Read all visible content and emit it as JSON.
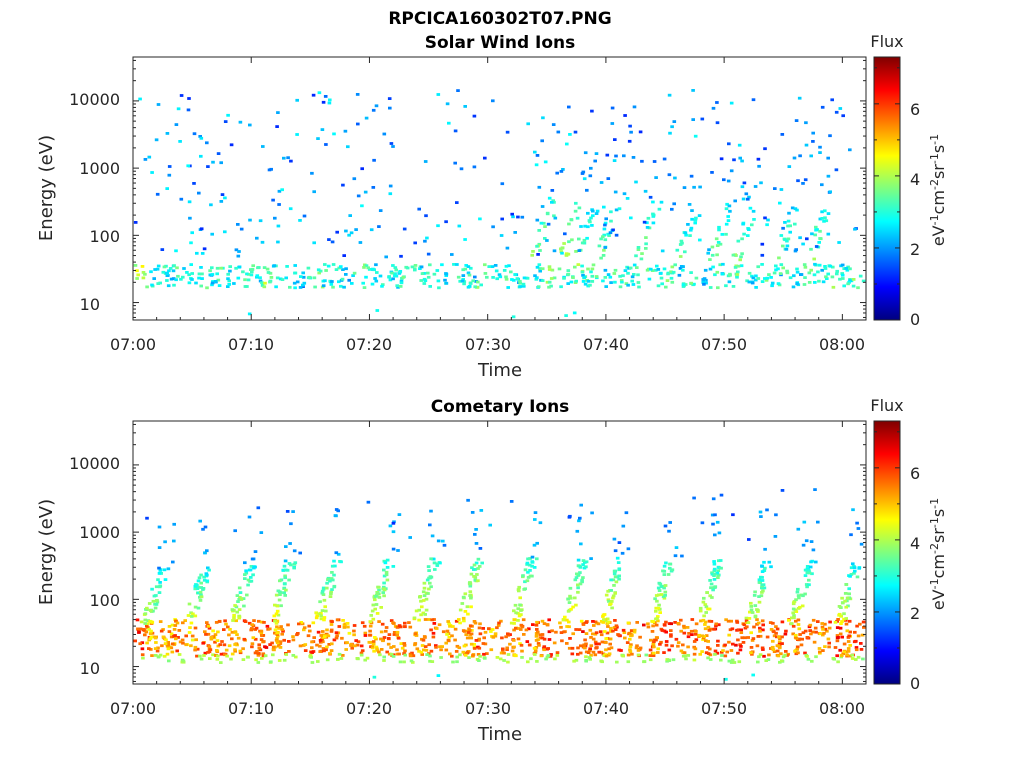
{
  "figure": {
    "title": "RPCICA160302T07.PNG"
  },
  "colors": {
    "colormap": [
      "#00007f",
      "#0000ff",
      "#007fff",
      "#00ffff",
      "#7fff7f",
      "#ffff00",
      "#ff7f00",
      "#ff0000",
      "#7f0000"
    ],
    "axis": "#262626",
    "background": "#ffffff"
  },
  "chart_data": [
    {
      "type": "heatmap",
      "title": "Solar Wind Ions",
      "xlabel": "Time",
      "ylabel": "Energy (eV)",
      "yscale": "log",
      "xlim": [
        "07:00",
        "08:02"
      ],
      "ylim": [
        5.5,
        45000
      ],
      "x_ticks": [
        "07:00",
        "07:10",
        "07:20",
        "07:30",
        "07:40",
        "07:50",
        "08:00"
      ],
      "y_ticks": [
        "10",
        "100",
        "1000",
        "10000"
      ],
      "colorbar": {
        "title": "Flux",
        "label": "eV-1cm-2sr-1s-1",
        "range": [
          0,
          7.3
        ],
        "ticks": [
          "0",
          "2",
          "4",
          "6"
        ]
      },
      "series": [
        {
          "time_min": [
            0.3,
            2.3,
            3.7,
            5.9,
            7.4,
            9.7,
            11.1,
            13.0,
            15.4,
            16.9,
            19.2,
            21.4,
            23.1,
            25.3,
            27.6,
            29.0,
            31.4,
            33.4,
            35.1,
            37.8,
            39.1,
            41.0,
            43.0,
            45.2,
            47.1,
            49.2,
            51.0,
            53.4,
            55.1,
            57.0,
            59.4,
            61.0
          ],
          "flux": [
            5.0,
            3.7,
            3.9,
            3.9,
            3.8,
            4.0,
            4.4,
            3.7,
            4.2,
            3.7,
            4.0,
            3.8,
            4.2,
            4.0,
            3.9,
            4.1,
            3.9,
            4.0,
            4.1,
            4.4,
            4.1,
            4.0,
            4.1,
            4.0,
            3.8,
            3.8,
            4.1,
            4.0,
            4.0,
            4.0,
            4.2,
            4.1
          ],
          "energy_ev": 26
        },
        {
          "time_min": [
            35.3,
            37.5,
            38.7,
            40.5,
            44.0,
            47.4,
            50.3,
            52.2,
            55.7,
            58.5
          ],
          "energy_ev": [
            400,
            350,
            300,
            280,
            330,
            260,
            320,
            300,
            280,
            300
          ],
          "flux": [
            3.2,
            3.4,
            3.0,
            3.0,
            3.1,
            2.9,
            3.0,
            3.1,
            2.9,
            3.0
          ]
        }
      ]
    },
    {
      "type": "heatmap",
      "title": "Cometary Ions",
      "xlabel": "Time",
      "ylabel": "Energy (eV)",
      "yscale": "log",
      "xlim": [
        "07:00",
        "08:02"
      ],
      "ylim": [
        5.5,
        45000
      ],
      "x_ticks": [
        "07:00",
        "07:10",
        "07:20",
        "07:30",
        "07:40",
        "07:50",
        "08:00"
      ],
      "y_ticks": [
        "10",
        "100",
        "1000",
        "10000"
      ],
      "colorbar": {
        "title": "Flux",
        "label": "eV-1cm-2sr-1s-1",
        "range": [
          0,
          7.3
        ],
        "ticks": [
          "0",
          "2",
          "4",
          "6"
        ]
      },
      "series": [
        {
          "time_min": [
            0.3,
            2.3,
            3.7,
            5.9,
            7.4,
            9.7,
            11.1,
            13.0,
            15.4,
            16.9,
            19.2,
            21.4,
            23.1,
            25.3,
            27.6,
            29.0,
            31.4,
            33.4,
            35.1,
            37.8,
            39.1,
            41.0,
            43.0,
            45.2,
            47.1,
            49.2,
            51.0,
            53.4,
            55.1,
            57.0,
            59.4,
            61.0
          ],
          "flux": [
            6.8,
            6.2,
            6.3,
            6.5,
            6.3,
            6.6,
            6.7,
            6.4,
            6.7,
            6.4,
            6.6,
            6.5,
            6.6,
            6.4,
            6.4,
            6.6,
            6.5,
            6.6,
            6.6,
            6.8,
            6.6,
            6.5,
            6.6,
            6.7,
            6.5,
            6.6,
            6.7,
            6.6,
            6.6,
            6.5,
            6.7,
            6.6
          ],
          "energy_ev": 28
        },
        {
          "time_min": [
            2.3,
            5.9,
            9.7,
            13.0,
            16.9,
            21.4,
            25.3,
            29.0,
            33.4,
            37.8,
            41.0,
            45.2,
            49.2,
            53.4,
            57.0,
            61.0
          ],
          "energy_ev": [
            300,
            320,
            350,
            380,
            400,
            420,
            430,
            450,
            430,
            420,
            430,
            420,
            400,
            380,
            400,
            380
          ],
          "flux": [
            3.0,
            3.1,
            3.2,
            3.3,
            3.3,
            3.4,
            3.4,
            3.5,
            3.4,
            3.4,
            3.4,
            3.3,
            3.3,
            3.2,
            3.2,
            3.1
          ]
        }
      ]
    }
  ]
}
